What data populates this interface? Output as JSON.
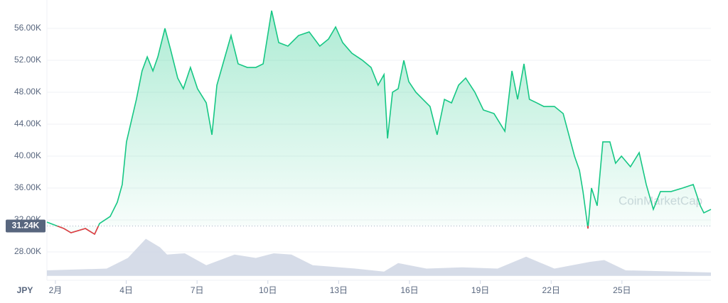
{
  "chart_data": {
    "type": "line",
    "currency": "JPY",
    "watermark": "CoinMarketCap",
    "reference": {
      "value": 31240,
      "label": "31.24K"
    },
    "xlim": [
      0.64,
      28.77
    ],
    "xticks": [
      {
        "value": 1,
        "label": "2月"
      },
      {
        "value": 4,
        "label": "4日"
      },
      {
        "value": 7,
        "label": "7日"
      },
      {
        "value": 10,
        "label": "10日"
      },
      {
        "value": 13,
        "label": "13日"
      },
      {
        "value": 16,
        "label": "16日"
      },
      {
        "value": 19,
        "label": "19日"
      },
      {
        "value": 22,
        "label": "22日"
      },
      {
        "value": 25,
        "label": "25日"
      }
    ],
    "ylim": [
      25000,
      59000
    ],
    "yticks": [
      {
        "value": 28000,
        "label": "28.00K"
      },
      {
        "value": 32000,
        "label": "32.00K"
      },
      {
        "value": 36000,
        "label": "36.00K"
      },
      {
        "value": 40000,
        "label": "40.00K"
      },
      {
        "value": 44000,
        "label": "44.00K"
      },
      {
        "value": 48000,
        "label": "48.00K"
      },
      {
        "value": 52000,
        "label": "52.00K"
      },
      {
        "value": 56000,
        "label": "56.00K"
      }
    ],
    "y2lim": [
      0,
      100
    ],
    "grid": true,
    "series": [
      {
        "color": "#16c784",
        "down_color": "#ea3943",
        "x": [
          0.64,
          1.36,
          1.66,
          2.27,
          2.66,
          2.87,
          3.32,
          3.62,
          3.83,
          4.01,
          4.22,
          4.43,
          4.67,
          4.89,
          5.13,
          5.34,
          5.64,
          5.88,
          6.18,
          6.42,
          6.72,
          7.02,
          7.39,
          7.63,
          7.84,
          8.14,
          8.44,
          8.74,
          9.13,
          9.49,
          9.8,
          10.16,
          10.46,
          10.85,
          11.3,
          11.75,
          12.2,
          12.57,
          12.87,
          13.17,
          13.56,
          14.01,
          14.37,
          14.67,
          14.92,
          15.07,
          15.28,
          15.52,
          15.76,
          15.97,
          16.27,
          16.57,
          16.87,
          17.17,
          17.48,
          17.78,
          18.08,
          18.38,
          18.77,
          19.13,
          19.58,
          20.04,
          20.34,
          20.58,
          20.85,
          21.08,
          21.39,
          21.69,
          22.14,
          22.51,
          22.75,
          22.99,
          23.2,
          23.35,
          23.56,
          23.71,
          23.95,
          24.19,
          24.49,
          24.73,
          24.98,
          25.36,
          25.73,
          26.03,
          26.33,
          26.63,
          27.08,
          27.57,
          28.02,
          28.32,
          28.47,
          28.77
        ],
        "values": [
          31730,
          30930,
          30400,
          30930,
          30220,
          31560,
          32440,
          34220,
          36440,
          41780,
          44450,
          47110,
          50670,
          52440,
          50670,
          52440,
          56000,
          53330,
          49780,
          48440,
          51110,
          48440,
          46670,
          42670,
          48890,
          52000,
          55110,
          51560,
          51110,
          51110,
          51560,
          58220,
          54220,
          53780,
          55110,
          55560,
          53780,
          54670,
          56180,
          54220,
          52890,
          52000,
          51110,
          48890,
          50220,
          42220,
          48000,
          48440,
          52000,
          49330,
          48000,
          47110,
          46220,
          42670,
          47110,
          46670,
          48890,
          49780,
          48000,
          45780,
          45330,
          43110,
          50670,
          47110,
          51560,
          47110,
          46670,
          46220,
          46220,
          45330,
          42670,
          40000,
          38220,
          35560,
          30930,
          36000,
          33780,
          41780,
          41780,
          39110,
          40000,
          38670,
          40440,
          36440,
          33330,
          35560,
          35560,
          36000,
          36440,
          33780,
          32890,
          33330
        ]
      },
      {
        "type": "area",
        "axis": "y2",
        "color": "#cfd6e4",
        "x": [
          0.64,
          3.17,
          4.07,
          4.83,
          5.43,
          5.73,
          6.48,
          7.39,
          8.59,
          9.49,
          10.25,
          11.0,
          11.9,
          13.71,
          14.92,
          15.52,
          16.72,
          18.23,
          19.73,
          20.94,
          22.14,
          23.65,
          24.25,
          25.16,
          28.77
        ],
        "values": [
          13,
          17,
          42,
          87,
          67,
          50,
          53,
          25,
          50,
          42,
          53,
          50,
          25,
          17,
          10,
          30,
          17,
          20,
          17,
          45,
          17,
          33,
          37,
          13,
          8
        ]
      }
    ]
  }
}
